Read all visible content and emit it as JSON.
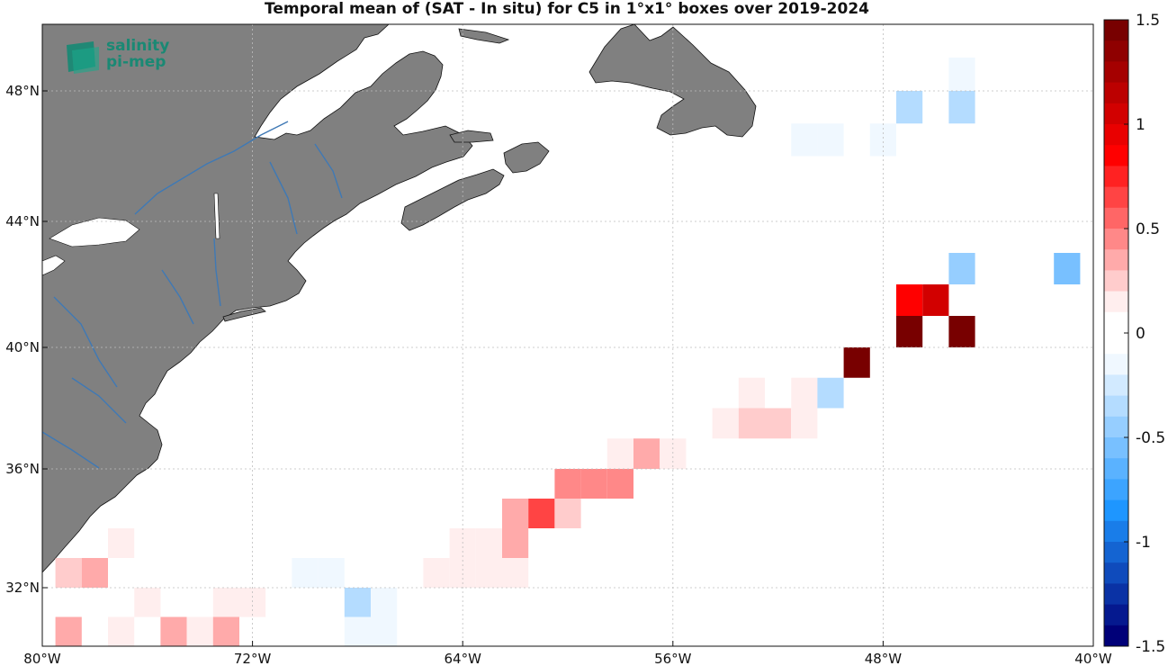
{
  "title": "Temporal mean of (SAT - In situ) for C5 in 1°x1° boxes over 2019-2024",
  "logo": {
    "line1": "salinity",
    "line2": "pi-mep"
  },
  "map_data": {
    "type": "heatmap",
    "lon_range": [
      -80,
      -40
    ],
    "lat_range": [
      30,
      50
    ],
    "x_ticks": [
      "80°W",
      "72°W",
      "64°W",
      "56°W",
      "48°W",
      "40°W"
    ],
    "y_ticks": [
      "48°N",
      "44°N",
      "40°N",
      "36°N",
      "32°N"
    ],
    "grid": true,
    "land_color": "#808080",
    "river_color": "#3f79b5",
    "cells": [
      {
        "lon": -45,
        "lat": 48.5,
        "value": -0.1
      },
      {
        "lon": -47,
        "lat": 47.5,
        "value": -0.35
      },
      {
        "lon": -45,
        "lat": 47.5,
        "value": -0.3
      },
      {
        "lon": -51,
        "lat": 46.5,
        "value": -0.1
      },
      {
        "lon": -50,
        "lat": 46.5,
        "value": -0.1
      },
      {
        "lon": -48,
        "lat": 46.5,
        "value": -0.1
      },
      {
        "lon": -45,
        "lat": 42.5,
        "value": -0.5
      },
      {
        "lon": -41,
        "lat": 42.5,
        "value": -0.6
      },
      {
        "lon": -47,
        "lat": 41.5,
        "value": 0.8
      },
      {
        "lon": -46,
        "lat": 41.5,
        "value": 1.0
      },
      {
        "lon": -47,
        "lat": 40.5,
        "value": 1.5
      },
      {
        "lon": -45,
        "lat": 40.5,
        "value": 1.5
      },
      {
        "lon": -49,
        "lat": 39.5,
        "value": 1.5
      },
      {
        "lon": -53,
        "lat": 38.5,
        "value": 0.15
      },
      {
        "lon": -51,
        "lat": 38.5,
        "value": 0.15
      },
      {
        "lon": -50,
        "lat": 38.5,
        "value": -0.4
      },
      {
        "lon": -54,
        "lat": 37.5,
        "value": 0.15
      },
      {
        "lon": -53,
        "lat": 37.5,
        "value": 0.25
      },
      {
        "lon": -52,
        "lat": 37.5,
        "value": 0.25
      },
      {
        "lon": -51,
        "lat": 37.5,
        "value": 0.15
      },
      {
        "lon": -58,
        "lat": 36.5,
        "value": 0.15
      },
      {
        "lon": -57,
        "lat": 36.5,
        "value": 0.3
      },
      {
        "lon": -56,
        "lat": 36.5,
        "value": 0.15
      },
      {
        "lon": -60,
        "lat": 35.5,
        "value": 0.4
      },
      {
        "lon": -59,
        "lat": 35.5,
        "value": 0.4
      },
      {
        "lon": -58,
        "lat": 35.5,
        "value": 0.4
      },
      {
        "lon": -62,
        "lat": 34.5,
        "value": 0.3
      },
      {
        "lon": -61,
        "lat": 34.5,
        "value": 0.6
      },
      {
        "lon": -60,
        "lat": 34.5,
        "value": 0.25
      },
      {
        "lon": -64,
        "lat": 33.5,
        "value": 0.15
      },
      {
        "lon": -63,
        "lat": 33.5,
        "value": 0.15
      },
      {
        "lon": -62,
        "lat": 33.5,
        "value": 0.3
      },
      {
        "lon": -65,
        "lat": 32.5,
        "value": 0.15
      },
      {
        "lon": -64,
        "lat": 32.5,
        "value": 0.15
      },
      {
        "lon": -63,
        "lat": 32.5,
        "value": 0.15
      },
      {
        "lon": -62,
        "lat": 32.5,
        "value": 0.15
      },
      {
        "lon": -77,
        "lat": 33.5,
        "value": 0.15
      },
      {
        "lon": -79,
        "lat": 32.5,
        "value": 0.2
      },
      {
        "lon": -78,
        "lat": 32.5,
        "value": 0.3
      },
      {
        "lon": -70,
        "lat": 32.5,
        "value": -0.1
      },
      {
        "lon": -69,
        "lat": 32.5,
        "value": -0.2
      },
      {
        "lon": -76,
        "lat": 31.5,
        "value": 0.15
      },
      {
        "lon": -73,
        "lat": 31.5,
        "value": 0.15
      },
      {
        "lon": -72,
        "lat": 31.5,
        "value": 0.15
      },
      {
        "lon": -68,
        "lat": 31.5,
        "value": -0.35
      },
      {
        "lon": -67,
        "lat": 31.5,
        "value": -0.1
      },
      {
        "lon": -79,
        "lat": 30.5,
        "value": 0.3
      },
      {
        "lon": -77,
        "lat": 30.5,
        "value": 0.15
      },
      {
        "lon": -75,
        "lat": 30.5,
        "value": 0.3
      },
      {
        "lon": -74,
        "lat": 30.5,
        "value": 0.15
      },
      {
        "lon": -73,
        "lat": 30.5,
        "value": 0.3
      },
      {
        "lon": -68,
        "lat": 30.5,
        "value": -0.1
      },
      {
        "lon": -67,
        "lat": 30.5,
        "value": -0.1
      }
    ]
  },
  "colorbar": {
    "range": [
      -1.5,
      1.5
    ],
    "levels": 30,
    "tick_values": [
      1.5,
      1,
      0.5,
      0,
      -0.5,
      -1,
      -1.5
    ],
    "tick_labels": [
      "1.5",
      "1",
      "0.5",
      "0",
      "-0.5",
      "-1",
      "-1.5"
    ]
  }
}
